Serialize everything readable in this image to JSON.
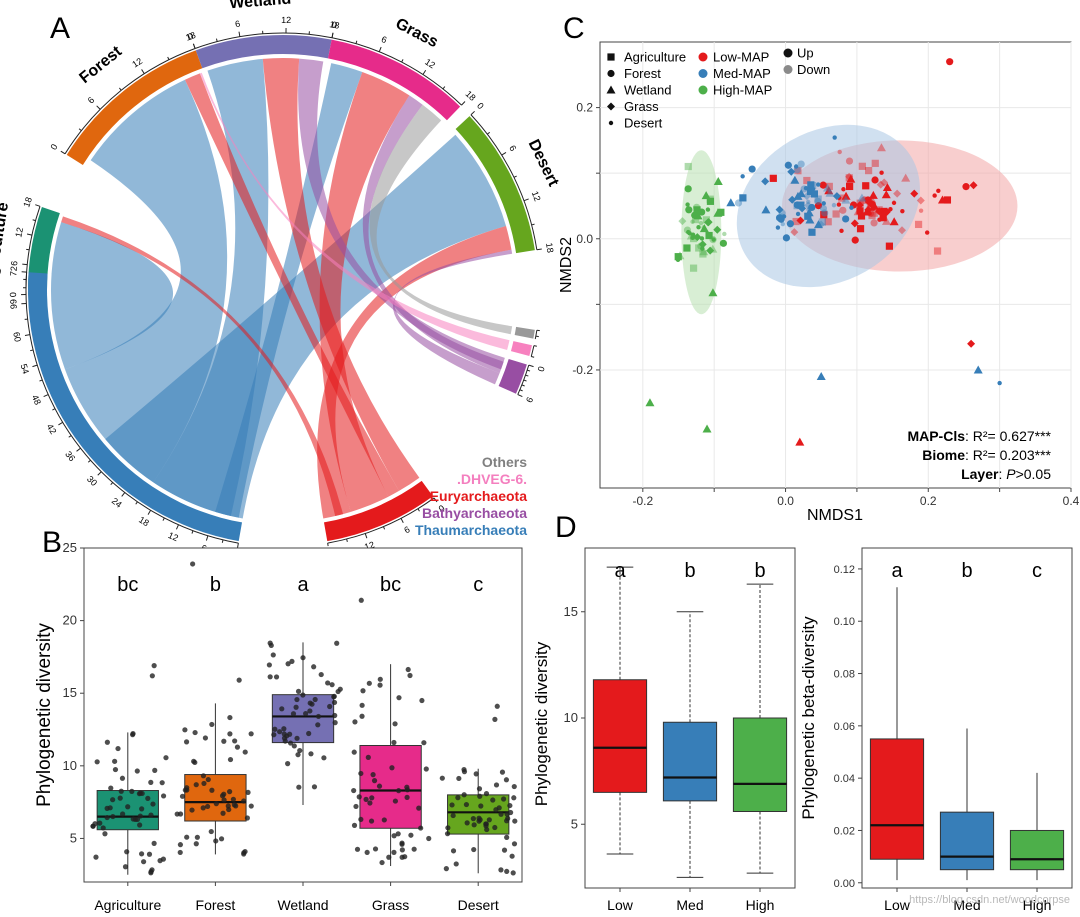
{
  "watermark": "https://blog.csdn.net/woodcorpse",
  "panelA": {
    "label": "A",
    "biomes": [
      {
        "name": "Agriculture",
        "color": "#1b9273",
        "max": 18,
        "ticks": [
          0,
          6,
          12,
          18
        ]
      },
      {
        "name": "Forest",
        "color": "#e0670e",
        "max": 18,
        "ticks": [
          0,
          6,
          12,
          18
        ]
      },
      {
        "name": "Wetland",
        "color": "#7570b3",
        "max": 18,
        "ticks": [
          0,
          6,
          12,
          18
        ]
      },
      {
        "name": "Grass",
        "color": "#e62b8a",
        "max": 18,
        "ticks": [
          0,
          6,
          12,
          18
        ]
      },
      {
        "name": "Desert",
        "color": "#66a61e",
        "max": 18,
        "ticks": [
          0,
          6,
          12,
          18
        ]
      }
    ],
    "phyla": [
      {
        "name": "Thaumarchaeota",
        "color": "#377eb8",
        "max": 72,
        "ticks": [
          0,
          6,
          12,
          18,
          24,
          30,
          36,
          42,
          48,
          54,
          60,
          66,
          72
        ]
      },
      {
        "name": "Euryarchaeota",
        "color": "#e41a1c",
        "max": 18,
        "ticks": [
          0,
          6,
          12
        ]
      },
      {
        "name": "Bathyarchaeota",
        "color": "#984ea3",
        "max": 6,
        "ticks": [
          0,
          6
        ]
      },
      {
        "name": ".DHVEG-6.",
        "color": "#f781bf",
        "max": 1,
        "ticks": []
      },
      {
        "name": "Others",
        "color": "#999999",
        "max": 1.5,
        "ticks": []
      }
    ],
    "legend": [
      "Others",
      ".DHVEG-6.",
      "Euryarchaeota",
      "Bathyarchaeota",
      "Thaumarchaeota"
    ]
  },
  "panelB": {
    "label": "B",
    "ylabel": "Phylogenetic diversity",
    "ylim": [
      2,
      25
    ],
    "yticks": [
      5,
      10,
      15,
      20,
      25
    ],
    "groups": [
      {
        "name": "Agriculture",
        "letter": "bc",
        "color": "#1b9273",
        "q1": 5.6,
        "median": 6.5,
        "q3": 8.3,
        "lo": 2.5,
        "hi": 12.3,
        "outliers": [
          16.2,
          16.9
        ]
      },
      {
        "name": "Forest",
        "letter": "b",
        "color": "#e0670e",
        "q1": 6.2,
        "median": 7.5,
        "q3": 9.4,
        "lo": 3.9,
        "hi": 14.3,
        "outliers": [
          15.9,
          23.9
        ]
      },
      {
        "name": "Wetland",
        "letter": "a",
        "color": "#7570b3",
        "q1": 11.6,
        "median": 13.4,
        "q3": 14.9,
        "lo": 7.3,
        "hi": 18.5,
        "outliers": []
      },
      {
        "name": "Grass",
        "letter": "bc",
        "color": "#e62b8a",
        "q1": 5.7,
        "median": 8.3,
        "q3": 11.4,
        "lo": 3.1,
        "hi": 17.0,
        "outliers": [
          21.4
        ]
      },
      {
        "name": "Desert",
        "letter": "c",
        "color": "#66a61e",
        "q1": 5.3,
        "median": 6.8,
        "q3": 8.0,
        "lo": 2.6,
        "hi": 9.8,
        "outliers": [
          13.2,
          14.1
        ]
      }
    ]
  },
  "panelC": {
    "label": "C",
    "xlabel": "NMDS1",
    "ylabel": "NMDS2",
    "xlim": [
      -0.26,
      0.4
    ],
    "ylim": [
      -0.38,
      0.3
    ],
    "xticks": [
      -0.2,
      -0.1,
      0.0,
      0.1,
      0.2,
      0.3,
      0.4
    ],
    "xtick_labels": [
      "-0.2",
      "",
      "0.0",
      "",
      "0.2",
      "",
      "0.4"
    ],
    "yticks": [
      -0.2,
      -0.1,
      0.0,
      0.1,
      0.2
    ],
    "ytick_labels": [
      "-0.2",
      "",
      "0.0",
      "",
      "0.2"
    ],
    "shape_legend": [
      "Agriculture",
      "Forest",
      "Wetland",
      "Grass",
      "Desert"
    ],
    "map_legend": [
      {
        "name": "Low-MAP",
        "color": "#e41a1c"
      },
      {
        "name": "Med-MAP",
        "color": "#377eb8"
      },
      {
        "name": "High-MAP",
        "color": "#4daf4a"
      }
    ],
    "layer_legend": [
      {
        "name": "Up",
        "color": "#111111"
      },
      {
        "name": "Down",
        "color": "#8a8a8a"
      }
    ],
    "ellipses": [
      {
        "group": "Low-MAP",
        "color": "#f2a6a6",
        "cx": 0.16,
        "cy": 0.05,
        "rx": 0.165,
        "ry": 0.1
      },
      {
        "group": "Med-MAP",
        "color": "#a9c6e4",
        "cx": 0.06,
        "cy": 0.05,
        "rx": 0.135,
        "ry": 0.115,
        "angle": -30
      },
      {
        "group": "High-MAP",
        "color": "#b8e0b0",
        "cx": -0.118,
        "cy": 0.01,
        "rx": 0.028,
        "ry": 0.125
      }
    ],
    "stats": [
      {
        "name": "MAP-Cls",
        "rest": ": R²= 0.627***"
      },
      {
        "name": "Biome",
        "rest": ": R²= 0.203***"
      },
      {
        "name": "Layer",
        "rest": ": ",
        "p": "P",
        "tail": ">0.05"
      }
    ]
  },
  "panelD": {
    "label": "D",
    "left": {
      "ylabel": "Phylogenetic diversity",
      "ylim": [
        2,
        18
      ],
      "yticks": [
        5,
        10,
        15
      ],
      "groups": [
        {
          "name": "Low",
          "letter": "a",
          "color": "#e41a1c",
          "q1": 6.5,
          "median": 8.6,
          "q3": 11.8,
          "lo": 3.6,
          "hi": 17.1
        },
        {
          "name": "Med",
          "letter": "b",
          "color": "#377eb8",
          "q1": 6.1,
          "median": 7.2,
          "q3": 9.8,
          "lo": 2.5,
          "hi": 15.0
        },
        {
          "name": "High",
          "letter": "b",
          "color": "#4daf4a",
          "q1": 5.6,
          "median": 6.9,
          "q3": 10.0,
          "lo": 2.7,
          "hi": 16.3
        }
      ]
    },
    "right": {
      "ylabel": "Phylogenetic beta-diversity",
      "ylim": [
        -0.002,
        0.128
      ],
      "yticks": [
        0.0,
        0.02,
        0.04,
        0.06,
        0.08,
        0.1,
        0.12
      ],
      "ytick_labels": [
        "0.00",
        "0.02",
        "0.04",
        "0.06",
        "0.08",
        "0.10",
        "0.12"
      ],
      "groups": [
        {
          "name": "Low",
          "letter": "a",
          "color": "#e41a1c",
          "q1": 0.009,
          "median": 0.022,
          "q3": 0.055,
          "lo": 0.001,
          "hi": 0.113
        },
        {
          "name": "Med",
          "letter": "b",
          "color": "#377eb8",
          "q1": 0.005,
          "median": 0.01,
          "q3": 0.027,
          "lo": 0.001,
          "hi": 0.059
        },
        {
          "name": "High",
          "letter": "c",
          "color": "#4daf4a",
          "q1": 0.005,
          "median": 0.009,
          "q3": 0.02,
          "lo": 0.001,
          "hi": 0.042
        }
      ]
    }
  }
}
